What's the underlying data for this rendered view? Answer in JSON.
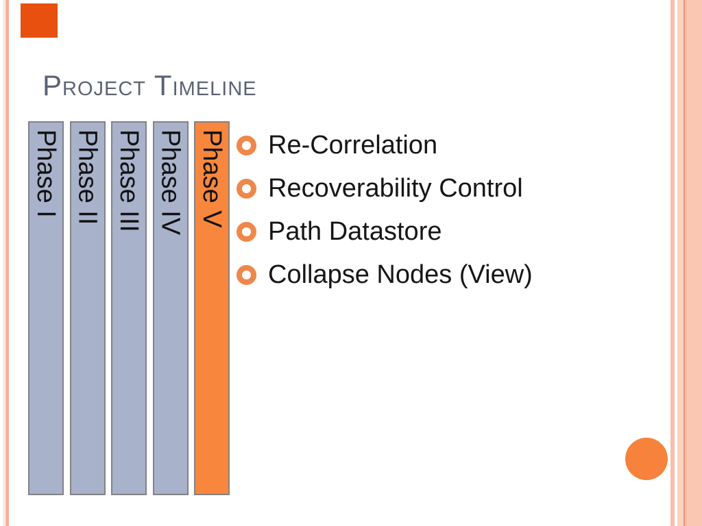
{
  "slide": {
    "title": "Project Timeline",
    "timeline": {
      "bars": [
        {
          "label": "Phase I",
          "color": "#a9b2cb"
        },
        {
          "label": "Phase II",
          "color": "#a9b2cb"
        },
        {
          "label": "Phase III",
          "color": "#a9b2cb"
        },
        {
          "label": "Phase IV",
          "color": "#a9b2cb"
        },
        {
          "label": "Phase V",
          "color": "#f8873d"
        }
      ]
    },
    "bullets": [
      "Re-Correlation",
      "Recoverability Control",
      "Path Datastore",
      "Collapse Nodes (View)"
    ],
    "colors": {
      "title_text": "#5a6373",
      "bar_blue": "#a9b2cb",
      "bar_orange": "#f8873d",
      "bar_border": "#828282",
      "bullet_ring": "#f0874a",
      "bullet_text": "#161616",
      "corner_circle": "#f6823b",
      "corner_square": "#e8500f",
      "left_stripe": "#f6b099",
      "right_stripe": "#f6bfa9",
      "right_band": "#f9c7b2",
      "background": "#ffffff"
    }
  }
}
